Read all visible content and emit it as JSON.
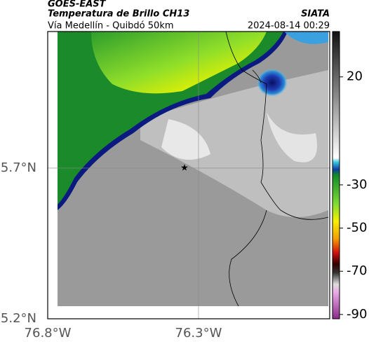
{
  "header": {
    "satellite": "GOES-EAST",
    "product": "Temperatura de Brillo CH13",
    "source": "SIATA",
    "location": "Vía Medellín - Quibdó 50km",
    "datetime": "2024-08-14 00:29"
  },
  "map": {
    "xlim": [
      -76.8,
      -75.865
    ],
    "ylim": [
      5.2,
      6.153
    ],
    "xticks": [
      {
        "value": -76.8,
        "label": "76.8°W"
      },
      {
        "value": -76.3,
        "label": "76.3°W"
      }
    ],
    "yticks": [
      {
        "value": 5.7,
        "label": "5.7°N"
      },
      {
        "value": 5.2,
        "label": "5.2°N"
      }
    ]
  },
  "colorbar": {
    "lim": [
      -92,
      41
    ],
    "ticks": [
      20,
      -30,
      -50,
      -70,
      -90
    ]
  }
}
